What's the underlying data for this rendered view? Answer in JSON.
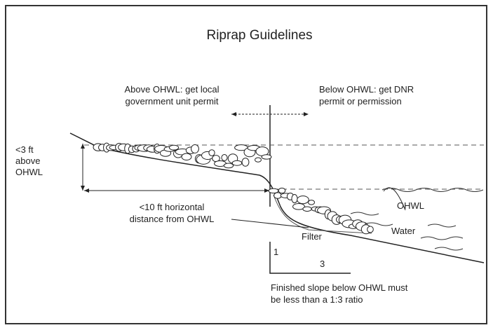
{
  "title": "Riprap Guidelines",
  "labels": {
    "above": [
      "Above OHWL: get local",
      "government unit permit"
    ],
    "below": [
      "Below OHWL: get DNR",
      "permit or permission"
    ],
    "height": [
      "<3 ft",
      "above",
      "OHWL"
    ],
    "distance": [
      "<10 ft horizontal",
      "distance from OHWL"
    ],
    "ohwl": "OHWL",
    "water": "Water",
    "filter": "Filter",
    "rise": "1",
    "run": "3",
    "slope_note": [
      "Finished slope below OHWL must",
      "be less than a 1:3 ratio"
    ]
  }
}
